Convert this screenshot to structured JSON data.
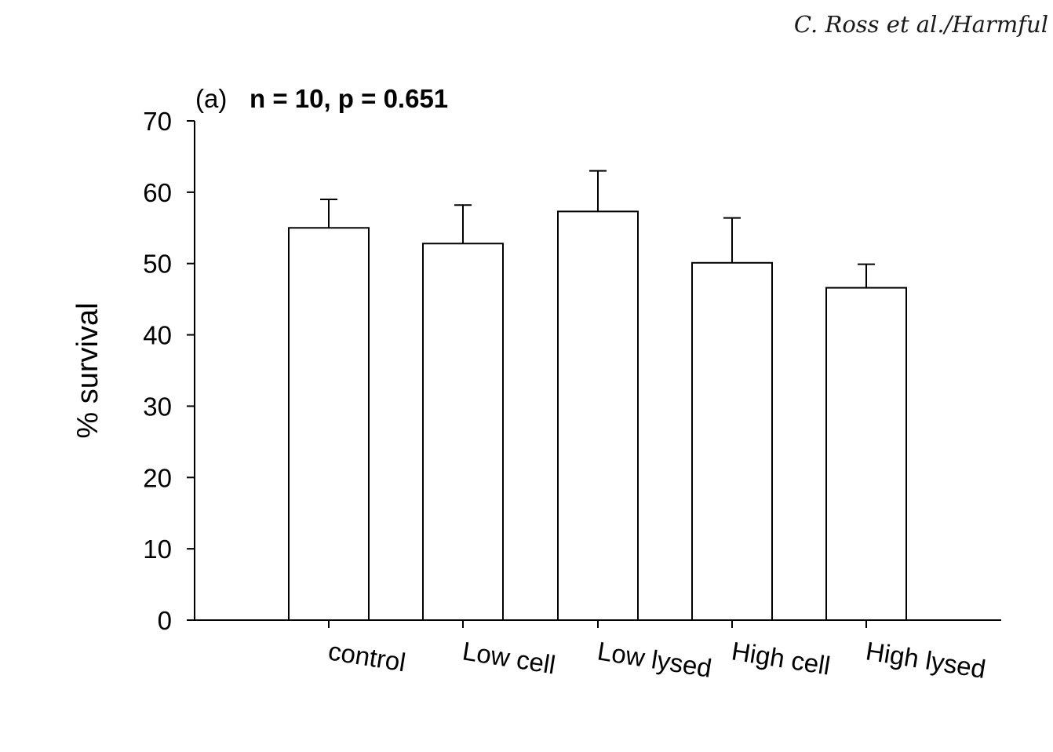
{
  "header": {
    "citation": "C. Ross et al./Harmful"
  },
  "chart_data": {
    "type": "bar",
    "panel_label": "(a)",
    "title": "n = 10, p = 0.651",
    "xlabel": "",
    "ylabel": "% survival",
    "ylim": [
      0,
      70
    ],
    "yticks": [
      0,
      10,
      20,
      30,
      40,
      50,
      60,
      70
    ],
    "categories": [
      "control",
      "Low cell",
      "Low lysed",
      "High cell",
      "High lysed"
    ],
    "values": [
      55,
      52.8,
      57.3,
      50.1,
      46.6
    ],
    "error": [
      4,
      5.4,
      5.7,
      6.3,
      3.3
    ],
    "grid": false,
    "legend": "none",
    "bar_fill": "#ffffff",
    "bar_stroke": "#000000"
  }
}
